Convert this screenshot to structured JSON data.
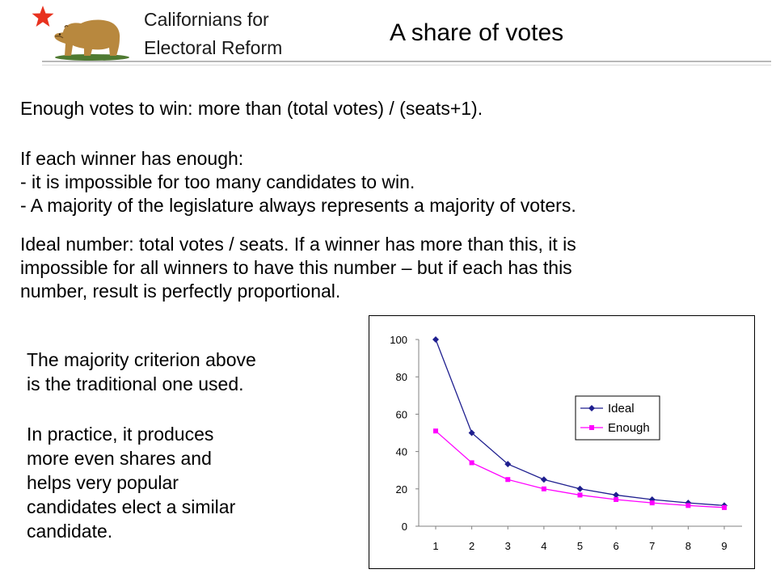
{
  "header": {
    "org_line1": "Californians for",
    "org_line2": "Electoral Reform",
    "title": "A share of votes",
    "star_icon": "red-star-icon",
    "logo_icon": "grizzly-bear-icon",
    "star_color": "#e8321f",
    "bear_color": "#b8883e"
  },
  "intro": {
    "line1": "Enough votes to win: more than (total votes) / (seats+1).",
    "line2": "If each winner has enough:",
    "line3": "- it is impossible for too many candidates to win.",
    "line4": "- A majority of the legislature always represents a majority of voters."
  },
  "ideal_paragraph": {
    "line1": "Ideal number: total votes / seats.  If a winner has more than this, it is",
    "line2": "impossible for all winners to have this number – but if each has this",
    "line3": "number, result is perfectly proportional."
  },
  "side_text": {
    "line1": "The majority criterion above",
    "line2": "is the traditional one used.",
    "line3": "In practice, it produces",
    "line4": "more even shares and",
    "line5": "helps very popular",
    "line6": "candidates elect a similar",
    "line7": "candidate."
  },
  "chart_data": {
    "type": "line",
    "x": [
      1,
      2,
      3,
      4,
      5,
      6,
      7,
      8,
      9
    ],
    "series": [
      {
        "name": "Ideal",
        "values": [
          100,
          50,
          33.3,
          25,
          20,
          16.7,
          14.3,
          12.5,
          11.1
        ],
        "color": "#1f1f8f",
        "marker": "diamond"
      },
      {
        "name": "Enough",
        "values": [
          51,
          34,
          25,
          20,
          16.7,
          14.3,
          12.5,
          11.1,
          10
        ],
        "color": "#ff00ff",
        "marker": "square"
      }
    ],
    "ylim": [
      0,
      100
    ],
    "yticks": [
      0,
      20,
      40,
      60,
      80,
      100
    ],
    "xlabel": "",
    "ylabel": "",
    "grid": false,
    "legend": "center-right"
  }
}
